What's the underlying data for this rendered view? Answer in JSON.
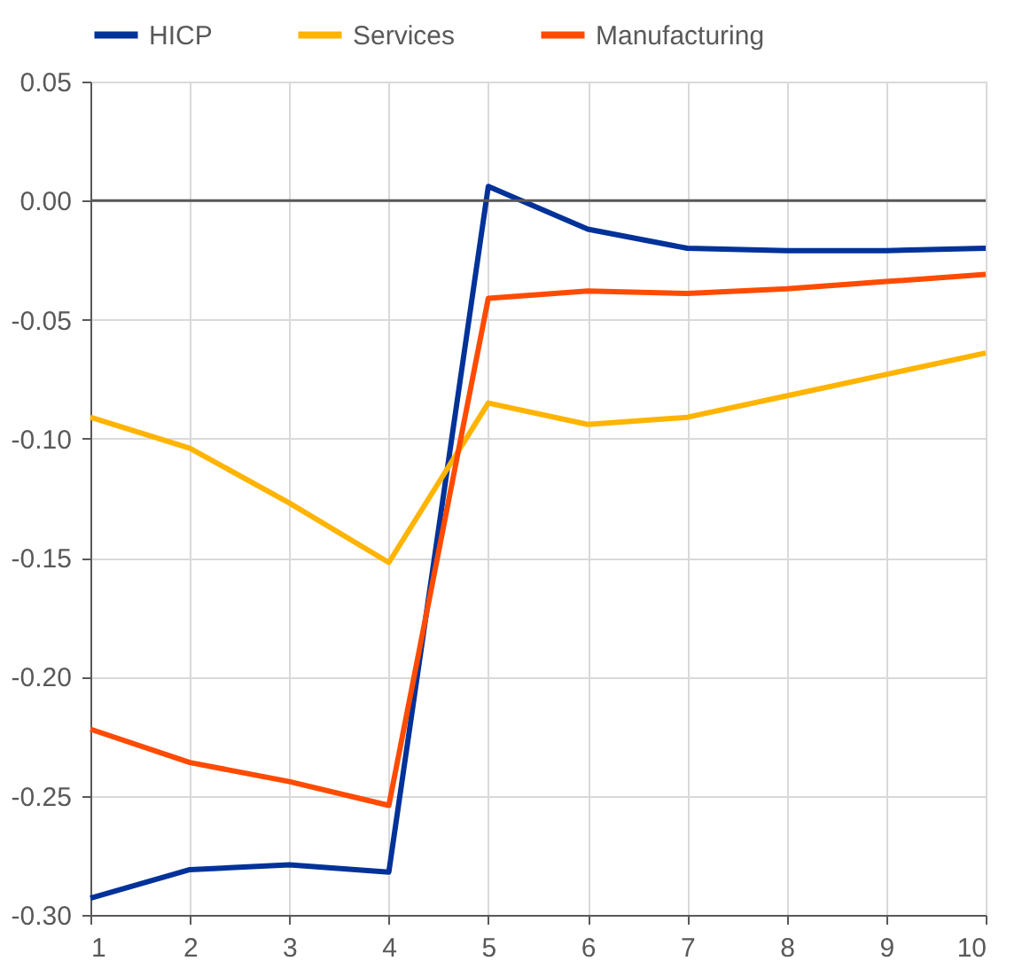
{
  "chart_data": {
    "type": "line",
    "x": [
      1,
      2,
      3,
      4,
      5,
      6,
      7,
      8,
      9,
      10
    ],
    "series": [
      {
        "name": "HICP",
        "color": "#003299",
        "values": [
          -0.293,
          -0.281,
          -0.279,
          -0.282,
          0.006,
          -0.012,
          -0.02,
          -0.021,
          -0.021,
          -0.02
        ]
      },
      {
        "name": "Services",
        "color": "#ffb400",
        "values": [
          -0.091,
          -0.104,
          -0.127,
          -0.152,
          -0.085,
          -0.094,
          -0.091,
          -0.082,
          -0.073,
          -0.064
        ]
      },
      {
        "name": "Manufacturing",
        "color": "#ff4b00",
        "values": [
          -0.222,
          -0.236,
          -0.244,
          -0.254,
          -0.041,
          -0.038,
          -0.039,
          -0.037,
          -0.034,
          -0.031
        ]
      }
    ],
    "xlim": [
      1,
      10
    ],
    "xticks": [
      1,
      2,
      3,
      4,
      5,
      6,
      7,
      8,
      9,
      10
    ],
    "ylim": [
      -0.3,
      0.05
    ],
    "yticks": [
      {
        "value": -0.3,
        "label": "-0.30"
      },
      {
        "value": -0.25,
        "label": "-0.25"
      },
      {
        "value": -0.2,
        "label": "-0.20"
      },
      {
        "value": -0.15,
        "label": "-0.15"
      },
      {
        "value": -0.1,
        "label": "-0.10"
      },
      {
        "value": -0.05,
        "label": "-0.05"
      },
      {
        "value": 0.0,
        "label": "0.00"
      },
      {
        "value": 0.05,
        "label": "0.05"
      }
    ],
    "ref_lines": [
      {
        "axis": "y",
        "value": 0,
        "color": "#595959"
      }
    ],
    "grid": true,
    "legend": "top",
    "marker": "none",
    "line_style": "solid"
  }
}
